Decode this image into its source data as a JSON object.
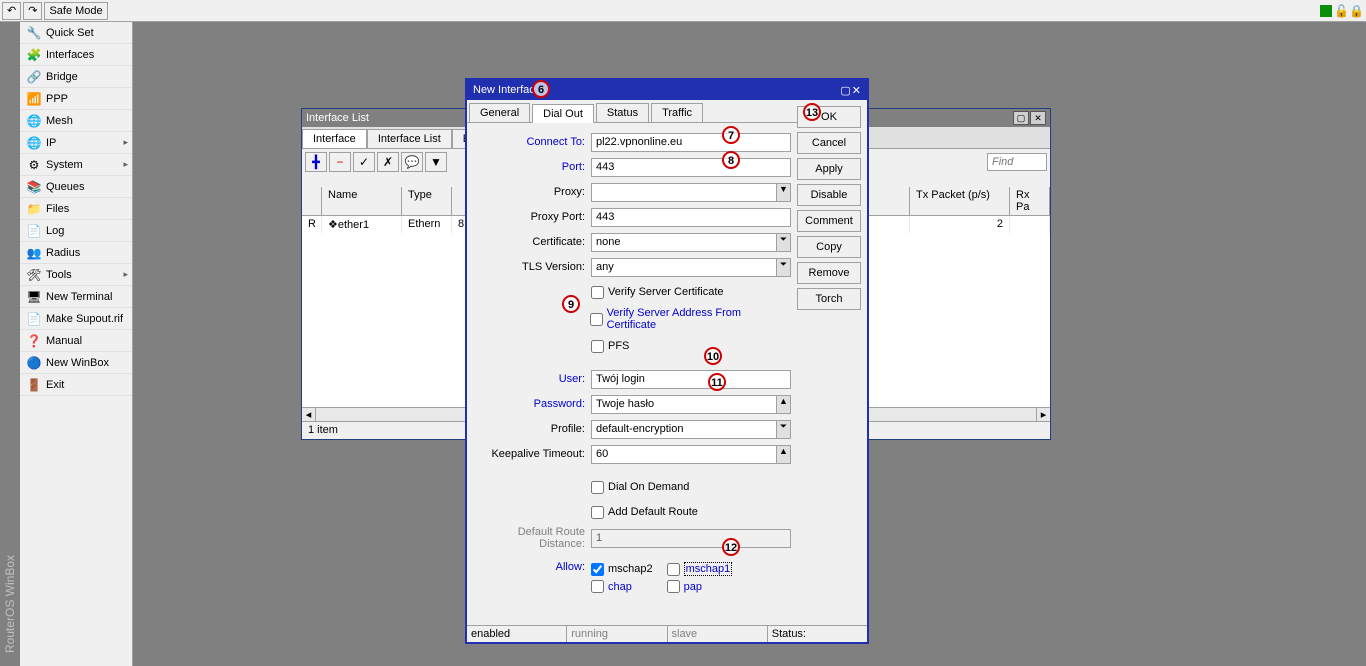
{
  "toolbar": {
    "safe_mode": "Safe Mode"
  },
  "vert_label": "RouterOS WinBox",
  "sidebar": [
    {
      "icon": "🔧",
      "label": "Quick Set"
    },
    {
      "icon": "🧩",
      "label": "Interfaces"
    },
    {
      "icon": "🔗",
      "label": "Bridge"
    },
    {
      "icon": "📶",
      "label": "PPP"
    },
    {
      "icon": "🌐",
      "label": "Mesh"
    },
    {
      "icon": "🌐",
      "label": "IP",
      "sub": true
    },
    {
      "icon": "⚙",
      "label": "System",
      "sub": true
    },
    {
      "icon": "📚",
      "label": "Queues"
    },
    {
      "icon": "📁",
      "label": "Files"
    },
    {
      "icon": "📄",
      "label": "Log"
    },
    {
      "icon": "👥",
      "label": "Radius"
    },
    {
      "icon": "🛠",
      "label": "Tools",
      "sub": true
    },
    {
      "icon": "🖥",
      "label": "New Terminal"
    },
    {
      "icon": "📄",
      "label": "Make Supout.rif"
    },
    {
      "icon": "❓",
      "label": "Manual"
    },
    {
      "icon": "🔵",
      "label": "New WinBox"
    },
    {
      "icon": "🚪",
      "label": "Exit"
    }
  ],
  "iflist": {
    "title": "Interface List",
    "tabs": [
      "Interface",
      "Interface List",
      "Ethern"
    ],
    "find": "Find",
    "cols": [
      "",
      "Name",
      "Type",
      "",
      "",
      "",
      "Tx Packet (p/s)",
      "Rx Pa"
    ],
    "row0": {
      "flag": "R",
      "name": "ether1",
      "type": "Ethern",
      "rate": "8 bps",
      "tx": "2"
    },
    "status": "1 item"
  },
  "dlg": {
    "title": "New Interfac",
    "tabs": [
      "General",
      "Dial Out",
      "Status",
      "Traffic"
    ],
    "fields": {
      "connect_to_label": "Connect To:",
      "connect_to": "pl22.vpnonline.eu",
      "port_label": "Port:",
      "port": "443",
      "proxy_label": "Proxy:",
      "proxy": "",
      "proxy_port_label": "Proxy Port:",
      "proxy_port": "443",
      "certificate_label": "Certificate:",
      "certificate": "none",
      "tls_label": "TLS Version:",
      "tls": "any",
      "verify_cert": "Verify Server Certificate",
      "verify_addr": "Verify Server Address From Certificate",
      "pfs": "PFS",
      "user_label": "User:",
      "user": "Twój login",
      "password_label": "Password:",
      "password": "Twoje hasło",
      "profile_label": "Profile:",
      "profile": "default-encryption",
      "keepalive_label": "Keepalive Timeout:",
      "keepalive": "60",
      "dial_on_demand": "Dial On Demand",
      "add_default_route": "Add Default Route",
      "default_route_dist_label": "Default Route Distance:",
      "default_route_dist": "1",
      "allow_label": "Allow:",
      "mschap2": "mschap2",
      "mschap1": "mschap1",
      "chap": "chap",
      "pap": "pap"
    },
    "buttons": [
      "OK",
      "Cancel",
      "Apply",
      "Disable",
      "Comment",
      "Copy",
      "Remove",
      "Torch"
    ],
    "status": {
      "enabled": "enabled",
      "running": "running",
      "slave": "slave",
      "status_label": "Status:"
    }
  },
  "markers": {
    "m6": "6",
    "m7": "7",
    "m8": "8",
    "m9": "9",
    "m10": "10",
    "m11": "11",
    "m12": "12",
    "m13": "13"
  }
}
